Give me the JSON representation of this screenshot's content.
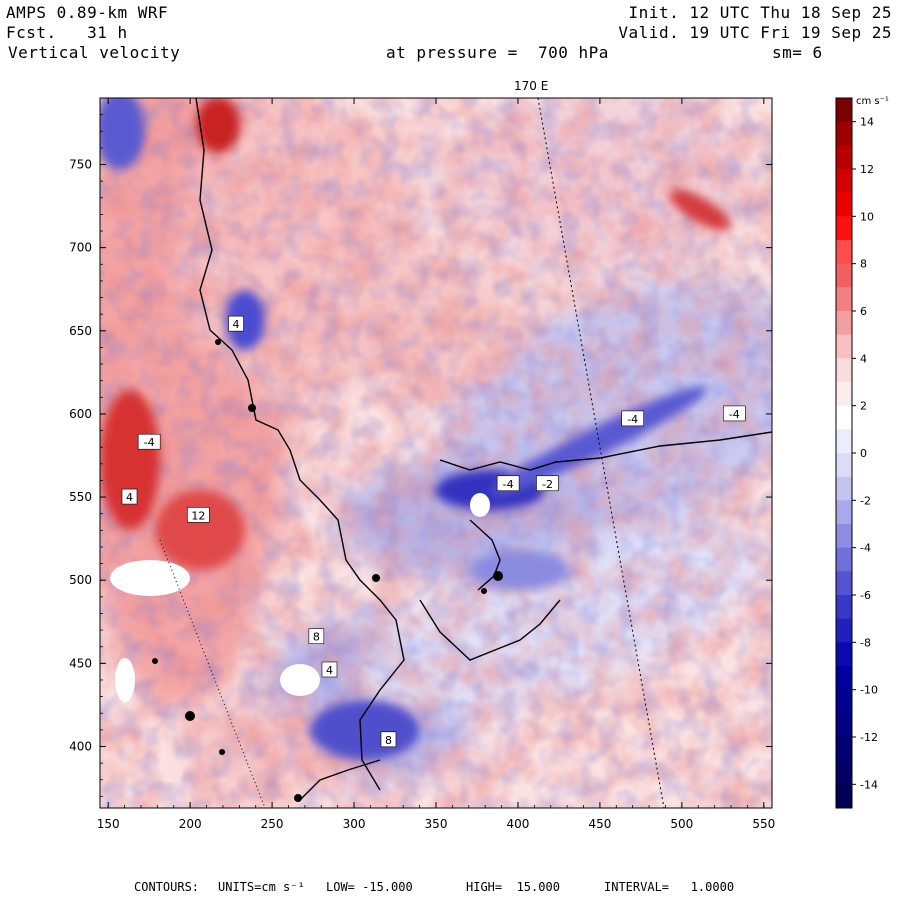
{
  "header": {
    "model": "AMPS 0.89-km WRF",
    "forecast": "Fcst.   31 h",
    "field": "Vertical velocity",
    "init": "Init. 12 UTC Thu 18 Sep 25",
    "valid": "Valid. 19 UTC Fri 19 Sep 25",
    "pressure_text": "at pressure =  700 hPa",
    "smoothing": "sm= 6"
  },
  "meridian_label": "170 E",
  "colorbar": {
    "units": "cm s⁻¹",
    "tick_labels": [
      "14",
      "12",
      "10",
      "8",
      "6",
      "4",
      "2",
      "0",
      "-2",
      "-4",
      "-6",
      "-8",
      "-10",
      "-12",
      "-14"
    ],
    "colors": [
      "#7b0000",
      "#9c0000",
      "#b80000",
      "#d40000",
      "#ea0000",
      "#ff1010",
      "#ff4c4c",
      "#f06060",
      "#f28080",
      "#f5a0a0",
      "#f8c0c0",
      "#fbdcdc",
      "#fdecec",
      "#ffffff",
      "#ececfb",
      "#dcdcf7",
      "#c4c4f1",
      "#a8a8ea",
      "#8c8ce2",
      "#7070d9",
      "#5454d0",
      "#3838c6",
      "#2020bc",
      "#0a0ab0",
      "#0000a0",
      "#000090",
      "#000080",
      "#000070",
      "#000062",
      "#000054"
    ]
  },
  "footer": {
    "contours": "CONTOURS:",
    "units": "UNITS=cm s⁻¹",
    "low": "LOW= -15.000",
    "high": "HIGH=  15.000",
    "interval": "INTERVAL=   1.0000"
  },
  "chart_data": {
    "type": "heatmap",
    "title": "Vertical velocity",
    "xlim": [
      145,
      555
    ],
    "ylim": [
      363,
      790
    ],
    "x_ticks": [
      150,
      200,
      250,
      300,
      350,
      400,
      450,
      500,
      550
    ],
    "y_ticks": [
      400,
      450,
      500,
      550,
      600,
      650,
      700,
      750
    ],
    "value_range": [
      -15,
      15
    ],
    "contour_interval": 1,
    "units": "cm s-1",
    "contour_labels": [
      {
        "x": 163,
        "y": 550,
        "text": "4"
      },
      {
        "x": 205,
        "y": 539,
        "text": "12"
      },
      {
        "x": 228,
        "y": 654,
        "text": "4"
      },
      {
        "x": 285,
        "y": 446,
        "text": "4"
      },
      {
        "x": 277,
        "y": 466,
        "text": "8"
      },
      {
        "x": 394,
        "y": 558,
        "text": "-4"
      },
      {
        "x": 418,
        "y": 558,
        "text": "-2"
      },
      {
        "x": 470,
        "y": 597,
        "text": "-4"
      },
      {
        "x": 532,
        "y": 600,
        "text": "-4"
      },
      {
        "x": 321,
        "y": 404,
        "text": "8"
      },
      {
        "x": 175,
        "y": 583,
        "text": "-4"
      }
    ]
  }
}
